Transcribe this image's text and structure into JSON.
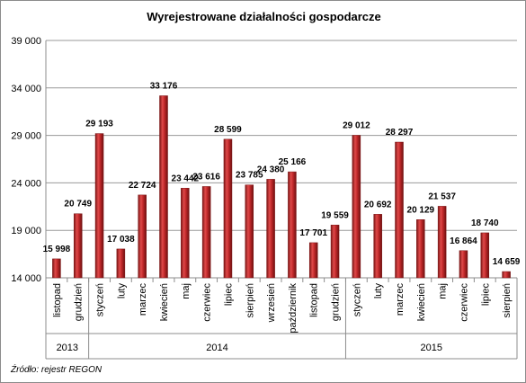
{
  "chart_data": {
    "type": "bar",
    "title": "Wyrejestrowane działalności gospodarcze",
    "ylim": [
      14000,
      39000
    ],
    "yticks": [
      14000,
      19000,
      24000,
      29000,
      34000,
      39000
    ],
    "ytick_labels": [
      "14 000",
      "19 000",
      "24 000",
      "29 000",
      "34 000",
      "39 000"
    ],
    "grid": true,
    "legend": "none",
    "bar_color": "#c0282a",
    "categories": [
      "listopad",
      "grudzień",
      "styczeń",
      "luty",
      "marzec",
      "kwiecień",
      "maj",
      "czerwiec",
      "lipiec",
      "sierpień",
      "wrzesień",
      "październik",
      "listopad",
      "grudzień",
      "styczeń",
      "luty",
      "marzec",
      "kwiecień",
      "maj",
      "czerwiec",
      "lipiec",
      "sierpień"
    ],
    "values": [
      15998,
      20749,
      29193,
      17038,
      22724,
      33176,
      23442,
      23616,
      28599,
      23785,
      24380,
      25166,
      17701,
      19559,
      29012,
      20692,
      28297,
      20129,
      21537,
      16864,
      18740,
      14659
    ],
    "value_labels": [
      "15 998",
      "20 749",
      "29 193",
      "17 038",
      "22 724",
      "33 176",
      "23 442",
      "23 616",
      "28 599",
      "23 785",
      "24 380",
      "25 166",
      "17 701",
      "19 559",
      "29 012",
      "20 692",
      "28 297",
      "20 129",
      "21 537",
      "16 864",
      "18 740",
      "14 659"
    ],
    "year_groups": [
      {
        "label": "2013",
        "count": 2
      },
      {
        "label": "2014",
        "count": 12
      },
      {
        "label": "2015",
        "count": 8
      }
    ]
  },
  "source_note": "Źródło: rejestr REGON"
}
